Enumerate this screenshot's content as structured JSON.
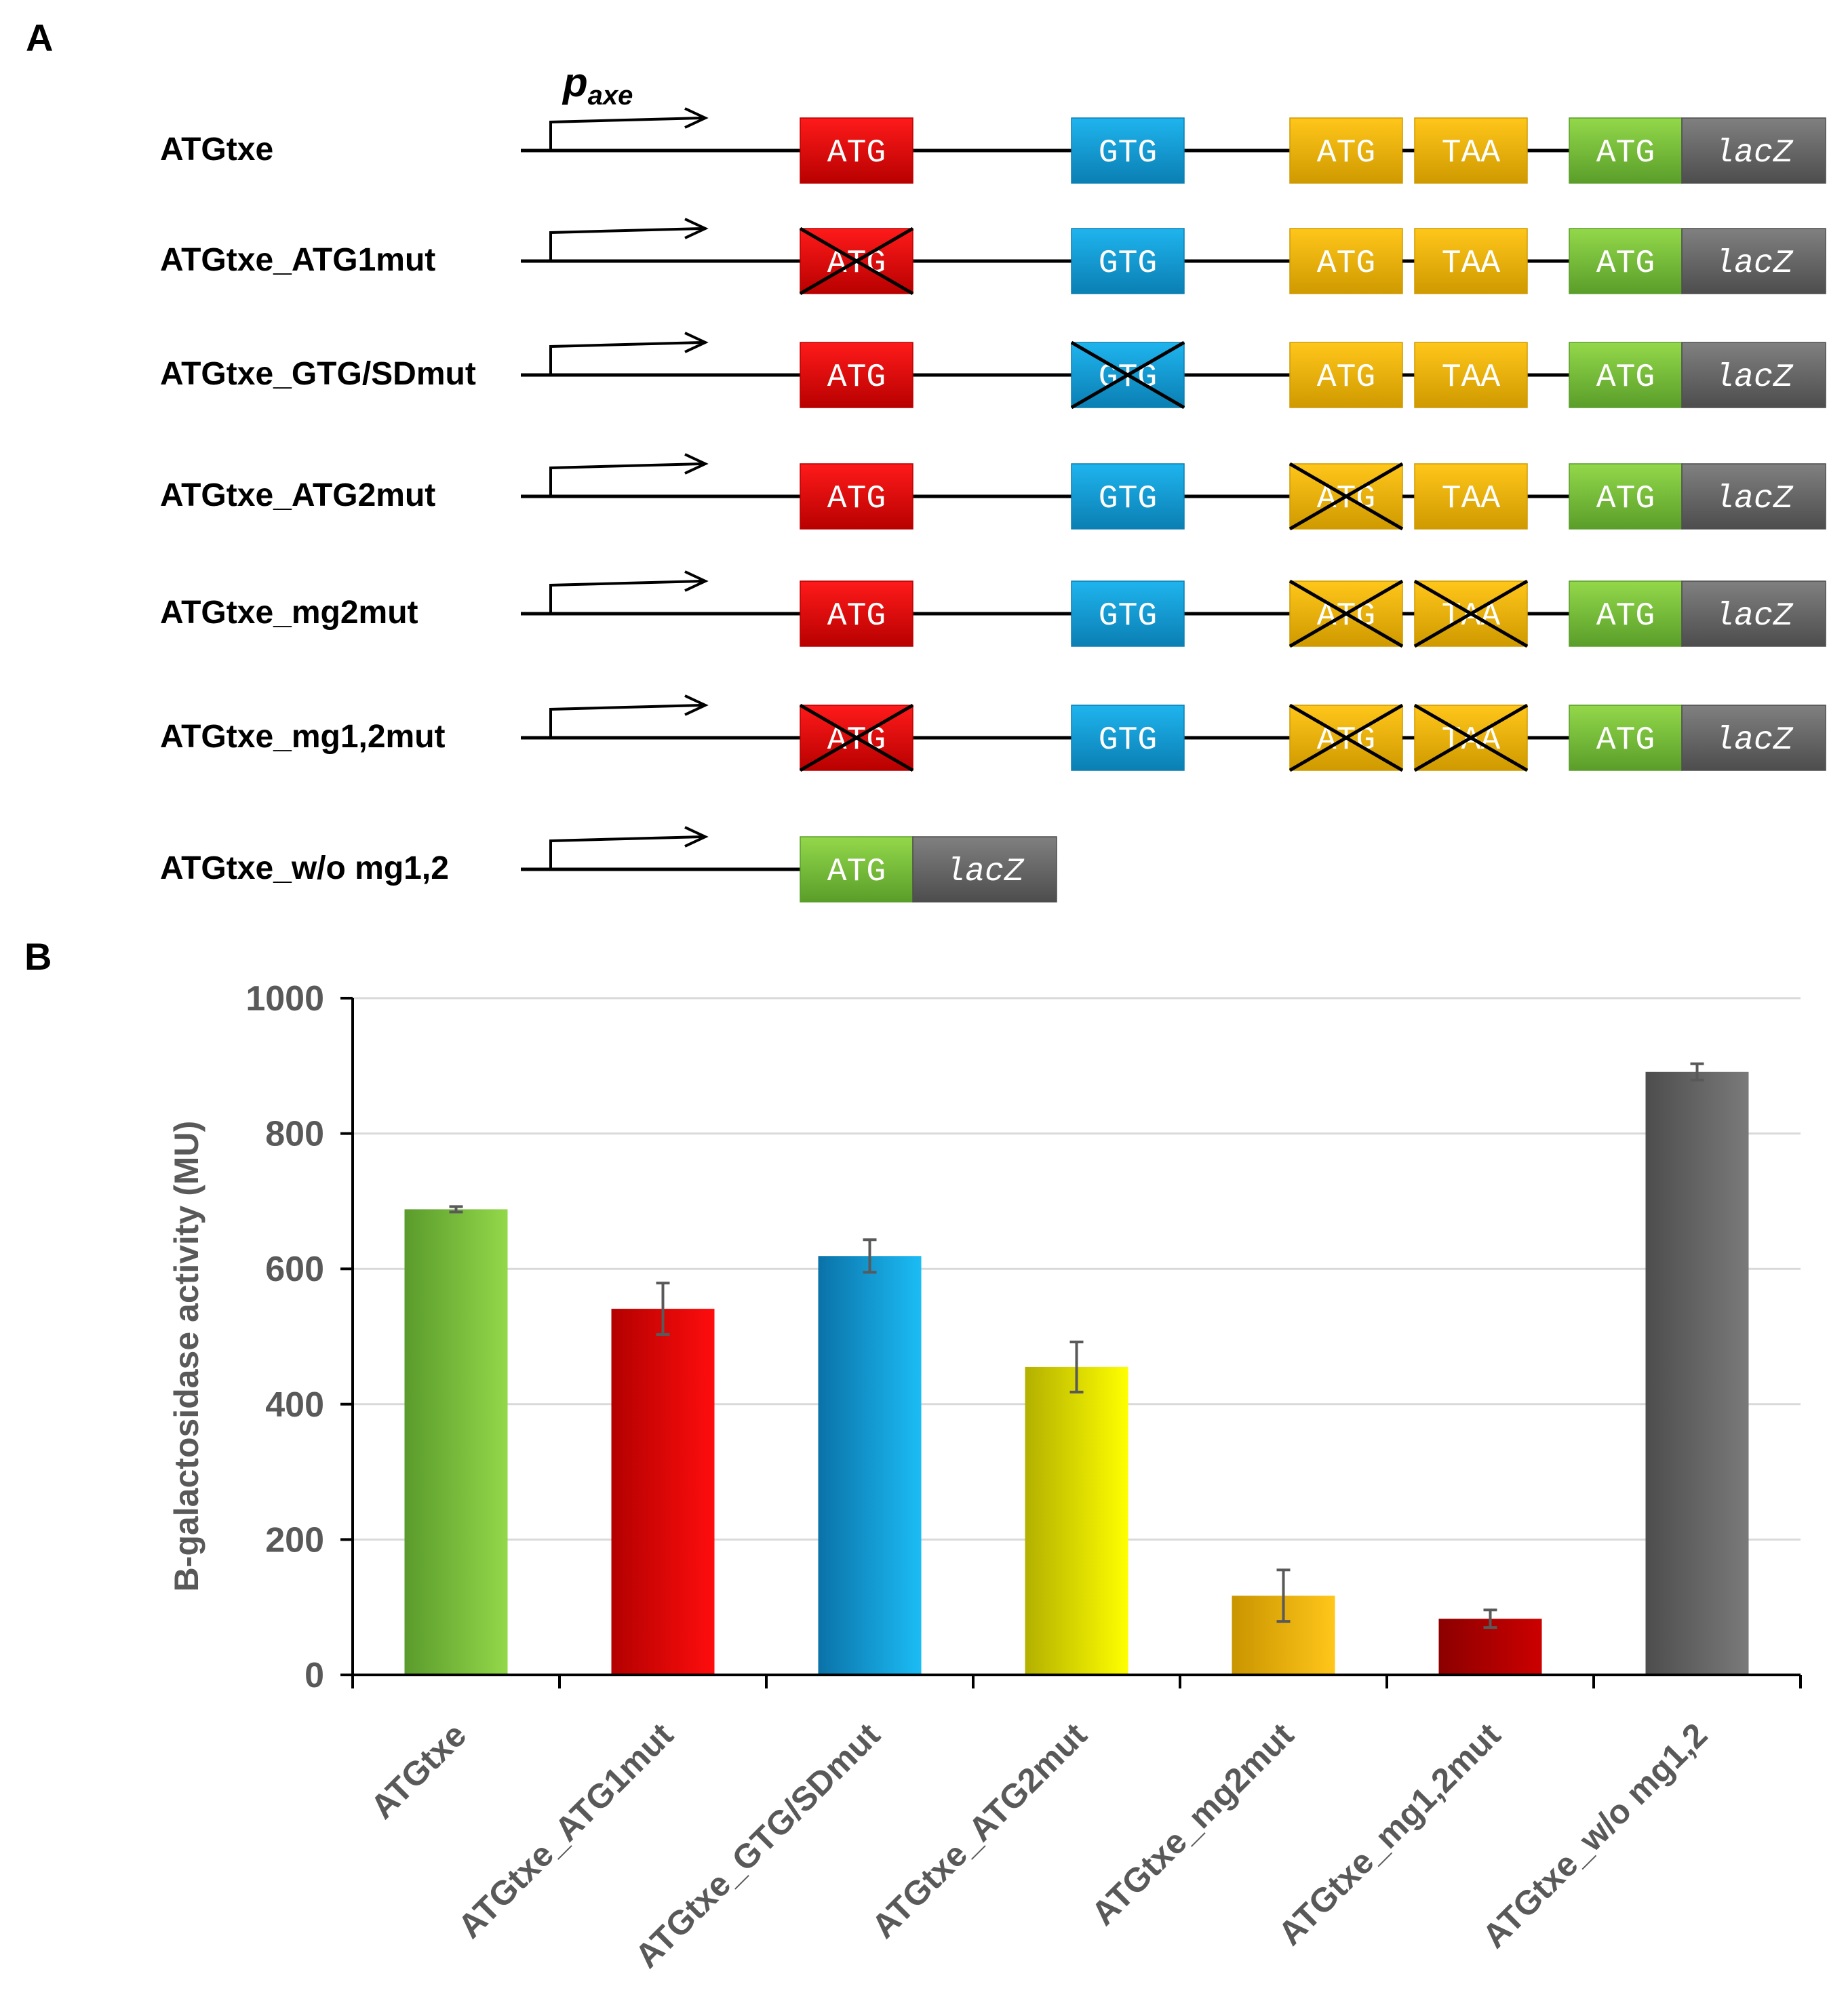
{
  "panel_a": {
    "label": "A",
    "promoter": {
      "main": "p",
      "sub": "axe"
    },
    "constructs": [
      {
        "name": "ATGtxe",
        "blocks": [
          {
            "kind": "red",
            "text": "ATG",
            "crossed": false
          },
          {
            "kind": "blue",
            "text": "GTG",
            "crossed": false
          },
          {
            "kind": "orange",
            "text": "ATG",
            "crossed": false
          },
          {
            "kind": "orange",
            "text": "TAA",
            "crossed": false
          },
          {
            "kind": "green",
            "text": "ATG",
            "crossed": false
          },
          {
            "kind": "gray",
            "text": "lacZ",
            "crossed": false
          }
        ]
      },
      {
        "name": "ATGtxe_ATG1mut",
        "blocks": [
          {
            "kind": "red",
            "text": "ATG",
            "crossed": true
          },
          {
            "kind": "blue",
            "text": "GTG",
            "crossed": false
          },
          {
            "kind": "orange",
            "text": "ATG",
            "crossed": false
          },
          {
            "kind": "orange",
            "text": "TAA",
            "crossed": false
          },
          {
            "kind": "green",
            "text": "ATG",
            "crossed": false
          },
          {
            "kind": "gray",
            "text": "lacZ",
            "crossed": false
          }
        ]
      },
      {
        "name": "ATGtxe_GTG/SDmut",
        "blocks": [
          {
            "kind": "red",
            "text": "ATG",
            "crossed": false
          },
          {
            "kind": "blue",
            "text": "GTG",
            "crossed": true
          },
          {
            "kind": "orange",
            "text": "ATG",
            "crossed": false
          },
          {
            "kind": "orange",
            "text": "TAA",
            "crossed": false
          },
          {
            "kind": "green",
            "text": "ATG",
            "crossed": false
          },
          {
            "kind": "gray",
            "text": "lacZ",
            "crossed": false
          }
        ]
      },
      {
        "name": "ATGtxe_ATG2mut",
        "blocks": [
          {
            "kind": "red",
            "text": "ATG",
            "crossed": false
          },
          {
            "kind": "blue",
            "text": "GTG",
            "crossed": false
          },
          {
            "kind": "orange",
            "text": "ATG",
            "crossed": true
          },
          {
            "kind": "orange",
            "text": "TAA",
            "crossed": false
          },
          {
            "kind": "green",
            "text": "ATG",
            "crossed": false
          },
          {
            "kind": "gray",
            "text": "lacZ",
            "crossed": false
          }
        ]
      },
      {
        "name": "ATGtxe_mg2mut",
        "blocks": [
          {
            "kind": "red",
            "text": "ATG",
            "crossed": false
          },
          {
            "kind": "blue",
            "text": "GTG",
            "crossed": false
          },
          {
            "kind": "orange",
            "text": "ATG",
            "crossed": true
          },
          {
            "kind": "orange",
            "text": "TAA",
            "crossed": true
          },
          {
            "kind": "green",
            "text": "ATG",
            "crossed": false
          },
          {
            "kind": "gray",
            "text": "lacZ",
            "crossed": false
          }
        ]
      },
      {
        "name": "ATGtxe_mg1,2mut",
        "blocks": [
          {
            "kind": "red",
            "text": "ATG",
            "crossed": true
          },
          {
            "kind": "blue",
            "text": "GTG",
            "crossed": false
          },
          {
            "kind": "orange",
            "text": "ATG",
            "crossed": true
          },
          {
            "kind": "orange",
            "text": "TAA",
            "crossed": true
          },
          {
            "kind": "green",
            "text": "ATG",
            "crossed": false
          },
          {
            "kind": "gray",
            "text": "lacZ",
            "crossed": false
          }
        ]
      },
      {
        "name": "ATGtxe_w/o mg1,2",
        "blocks": [
          {
            "kind": "green",
            "text": "ATG",
            "crossed": false
          },
          {
            "kind": "gray",
            "text": "lacZ",
            "crossed": false
          }
        ]
      }
    ],
    "colors": {
      "red": [
        "#b80000",
        "#ff1a1a"
      ],
      "blue": [
        "#0a7fb3",
        "#1fb4ee"
      ],
      "orange": [
        "#cf9a00",
        "#ffc61a"
      ],
      "green": [
        "#5a9e2a",
        "#93d84a"
      ],
      "gray": [
        "#4d4d4d",
        "#808080"
      ]
    }
  },
  "panel_b": {
    "label": "B"
  },
  "chart_data": {
    "type": "bar",
    "title": "",
    "xlabel": "",
    "ylabel": "B-galactosidase activity (MU)",
    "ylim": [
      0,
      1000
    ],
    "yticks": [
      0,
      200,
      400,
      600,
      800,
      1000
    ],
    "grid": true,
    "categories": [
      "ATGtxe",
      "ATGtxe_ATG1mut",
      "ATGtxe_GTG/SDmut",
      "ATGtxe_ATG2mut",
      "ATGtxe_mg2mut",
      "ATGtxe_mg1,2mut",
      "ATGtxe_w/o mg1,2"
    ],
    "values": [
      688,
      541,
      619,
      455,
      117,
      83,
      891
    ],
    "errors": [
      4,
      38,
      24,
      37,
      38,
      13,
      12
    ],
    "colors": [
      [
        "#5a9b2c",
        "#93d84a"
      ],
      [
        "#b30000",
        "#ff0d0d"
      ],
      [
        "#0a72a8",
        "#1cbcf5"
      ],
      [
        "#b3b000",
        "#ffff00"
      ],
      [
        "#c99500",
        "#ffc61a"
      ],
      [
        "#8c0000",
        "#cc0000"
      ],
      [
        "#4d4d4d",
        "#7a7a7a"
      ]
    ]
  }
}
